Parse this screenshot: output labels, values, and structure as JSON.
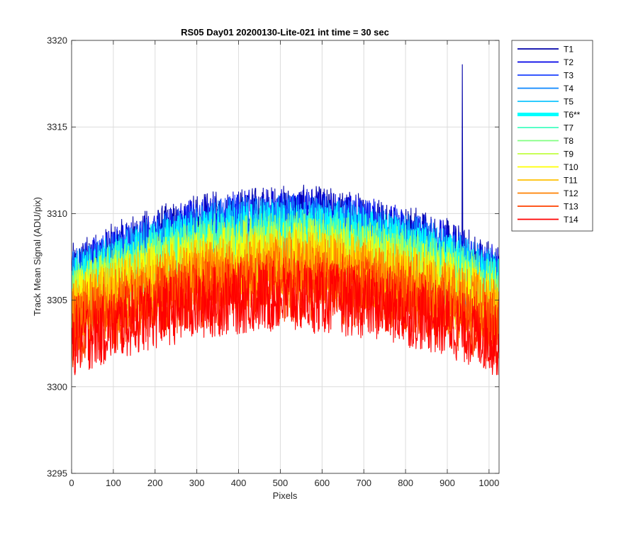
{
  "chart_data": {
    "type": "line",
    "title": "RS05 Day01 20200130-Lite-021 int time = 30 sec",
    "xlabel": "Pixels",
    "ylabel": "Track Mean Signal (ADU/pix)",
    "xlim": [
      0,
      1024
    ],
    "ylim": [
      3295,
      3320
    ],
    "xticks": [
      0,
      100,
      200,
      300,
      400,
      500,
      600,
      700,
      800,
      900,
      1000
    ],
    "yticks": [
      3295,
      3300,
      3305,
      3310,
      3315,
      3320
    ],
    "grid": true,
    "legend_position": "outside-right",
    "x_range": [
      1,
      1024
    ],
    "series": [
      {
        "name": "T1",
        "color": "#0000a8",
        "peak": 3309.6,
        "edge": 3306.2,
        "noise": 1.3,
        "highlight": false,
        "spike": {
          "x": 936,
          "y": 3318.6
        }
      },
      {
        "name": "T2",
        "color": "#0000e6",
        "peak": 3309.4,
        "edge": 3306.0,
        "noise": 1.3,
        "highlight": false
      },
      {
        "name": "T3",
        "color": "#1a40ff",
        "peak": 3309.2,
        "edge": 3305.8,
        "noise": 1.3,
        "highlight": false
      },
      {
        "name": "T4",
        "color": "#0a86ff",
        "peak": 3309.0,
        "edge": 3305.7,
        "noise": 1.3,
        "highlight": false
      },
      {
        "name": "T5",
        "color": "#10c4ff",
        "peak": 3308.8,
        "edge": 3305.6,
        "noise": 1.3,
        "highlight": false
      },
      {
        "name": "T6**",
        "color": "#00ffff",
        "peak": 3308.6,
        "edge": 3305.4,
        "noise": 1.3,
        "highlight": true
      },
      {
        "name": "T7",
        "color": "#40ffc0",
        "peak": 3308.3,
        "edge": 3305.2,
        "noise": 1.3,
        "highlight": false
      },
      {
        "name": "T8",
        "color": "#80ff80",
        "peak": 3308.0,
        "edge": 3305.0,
        "noise": 1.3,
        "highlight": false
      },
      {
        "name": "T9",
        "color": "#c0ff40",
        "peak": 3307.7,
        "edge": 3304.8,
        "noise": 1.3,
        "highlight": false
      },
      {
        "name": "T10",
        "color": "#ffff00",
        "peak": 3307.4,
        "edge": 3304.6,
        "noise": 1.3,
        "highlight": false
      },
      {
        "name": "T11",
        "color": "#ffc000",
        "peak": 3307.0,
        "edge": 3304.3,
        "noise": 1.3,
        "highlight": false
      },
      {
        "name": "T12",
        "color": "#ff8000",
        "peak": 3306.6,
        "edge": 3304.0,
        "noise": 1.3,
        "highlight": false
      },
      {
        "name": "T13",
        "color": "#ff4000",
        "peak": 3305.8,
        "edge": 3303.2,
        "noise": 1.3,
        "highlight": false
      },
      {
        "name": "T14",
        "color": "#ff0000",
        "peak": 3305.2,
        "edge": 3302.6,
        "noise": 1.3,
        "highlight": false
      }
    ]
  }
}
